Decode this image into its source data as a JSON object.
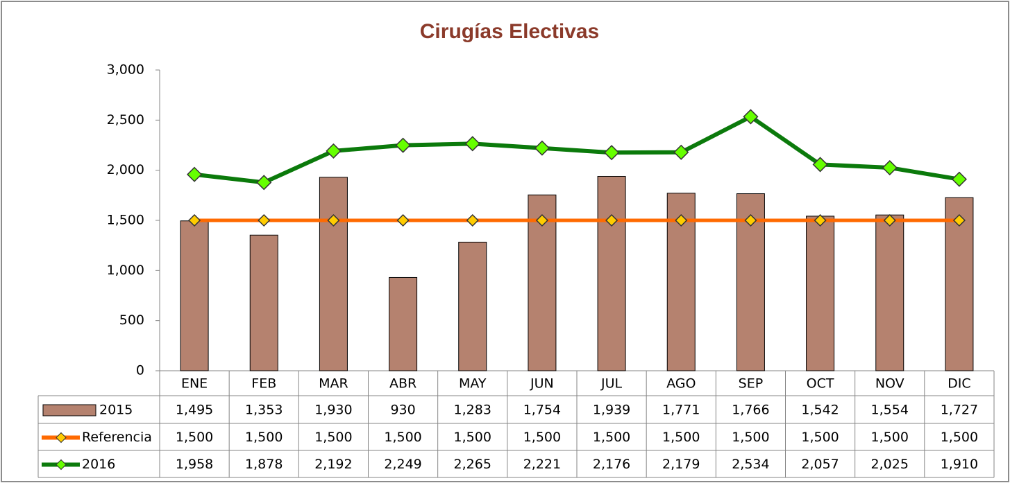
{
  "chart_data": {
    "type": "bar_line",
    "title": "Cirugías Electivas",
    "categories": [
      "ENE",
      "FEB",
      "MAR",
      "ABR",
      "MAY",
      "JUN",
      "JUL",
      "AGO",
      "SEP",
      "OCT",
      "NOV",
      "DIC"
    ],
    "series": [
      {
        "name": "2015",
        "type": "bar",
        "color": "#b5826f",
        "values": [
          1495,
          1353,
          1930,
          930,
          1283,
          1754,
          1939,
          1771,
          1766,
          1542,
          1554,
          1727
        ],
        "value_labels": [
          "1,495",
          "1,353",
          "1,930",
          "930",
          "1,283",
          "1,754",
          "1,939",
          "1,771",
          "1,766",
          "1,542",
          "1,554",
          "1,727"
        ]
      },
      {
        "name": "Referencia",
        "type": "line",
        "color": "#ff6a00",
        "marker_color": "#ffcc00",
        "values": [
          1500,
          1500,
          1500,
          1500,
          1500,
          1500,
          1500,
          1500,
          1500,
          1500,
          1500,
          1500
        ],
        "value_labels": [
          "1,500",
          "1,500",
          "1,500",
          "1,500",
          "1,500",
          "1,500",
          "1,500",
          "1,500",
          "1,500",
          "1,500",
          "1,500",
          "1,500"
        ]
      },
      {
        "name": "2016",
        "type": "line",
        "color": "#0b7a0b",
        "marker_color": "#66ff00",
        "values": [
          1958,
          1878,
          2192,
          2249,
          2265,
          2221,
          2176,
          2179,
          2534,
          2057,
          2025,
          1910
        ],
        "value_labels": [
          "1,958",
          "1,878",
          "2,192",
          "2,249",
          "2,265",
          "2,221",
          "2,176",
          "2,179",
          "2,534",
          "2,057",
          "2,025",
          "1,910"
        ]
      }
    ],
    "ylim": [
      0,
      3000
    ],
    "yticks": [
      0,
      500,
      {
        "value": 1000,
        "label": "1,000"
      },
      {
        "value": 1500,
        "label": "1,500"
      },
      {
        "value": 2000,
        "label": "2,000"
      },
      {
        "value": 2500,
        "label": "2,500"
      },
      {
        "value": 3000,
        "label": "3,000"
      }
    ],
    "grid": false
  }
}
